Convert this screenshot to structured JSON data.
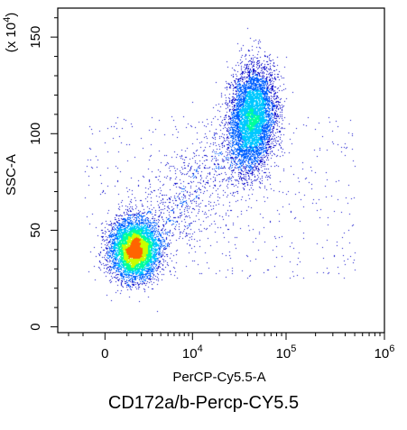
{
  "chart_data": {
    "type": "scatter",
    "style": "density-dot-plot",
    "title": "CD172a/b-Percp-CY5.5",
    "xlabel": "PerCP-Cy5.5-A",
    "ylabel": "SSC-A",
    "y_multiplier_label": "(x 10",
    "y_multiplier_exponent": "4",
    "y_multiplier_close": ")",
    "x_scale": "biexponential",
    "xlim": [
      -3000,
      1000000
    ],
    "ylim": [
      -3000,
      165000
    ],
    "x_ticks": [
      {
        "base": "0",
        "exp": "",
        "value": 0
      },
      {
        "base": "10",
        "exp": "4",
        "value": 10000
      },
      {
        "base": "10",
        "exp": "5",
        "value": 100000
      },
      {
        "base": "10",
        "exp": "6",
        "value": 1000000
      }
    ],
    "y_ticks": [
      {
        "label": "0",
        "value": 0
      },
      {
        "label": "50",
        "value": 50000
      },
      {
        "label": "100",
        "value": 100000
      },
      {
        "label": "150",
        "value": 150000
      }
    ],
    "grid": false,
    "legend": "none",
    "density_colors": [
      "#0000c8",
      "#0060ff",
      "#00c8ff",
      "#00ff9c",
      "#c8ff00",
      "#ff6400"
    ],
    "populations": [
      {
        "x_center": 1500,
        "y_center": 40000,
        "share": 0.45,
        "x_spread": "narrow",
        "y_spread": "narrow"
      },
      {
        "x_center": 45000,
        "y_center": 108000,
        "share": 0.3,
        "x_spread": "narrow",
        "y_spread": "wide"
      },
      {
        "x_center": 8000,
        "y_center": 60000,
        "share": 0.25,
        "x_spread": "wide",
        "y_spread": "wide"
      }
    ]
  }
}
